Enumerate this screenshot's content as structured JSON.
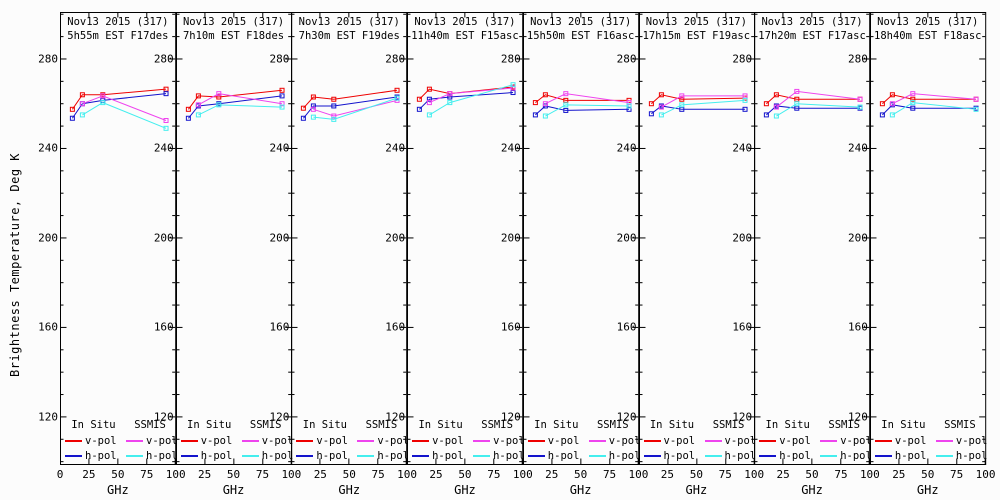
{
  "chart_data": {
    "type": "line",
    "title_repeated_per_panel": "Nov13 2015 (317)",
    "x_label": "GHz",
    "y_label": "Brightness Temperature, Deg K",
    "xlim": [
      0,
      100
    ],
    "ylim": [
      98.5,
      301
    ],
    "x_ticks": [
      0,
      25,
      50,
      75,
      100
    ],
    "y_ticks": [
      120,
      160,
      200,
      240,
      280
    ],
    "y_minor_tick_step": 10,
    "grid": "off",
    "legend_position": "bottom-inside-each-panel",
    "insitu_frequencies_ghz": [
      10.7,
      19.35,
      37,
      91.65
    ],
    "ssmis_frequencies_ghz": [
      19.35,
      37,
      91.65
    ],
    "series_meta": [
      {
        "key": "insitu_v",
        "group": "In Situ",
        "label": "v-pol",
        "color": "#ee0000",
        "freqs": "insitu"
      },
      {
        "key": "insitu_h",
        "group": "In Situ",
        "label": "h-pol",
        "color": "#1313cc",
        "freqs": "insitu"
      },
      {
        "key": "ssmis_v",
        "group": "SSMIS",
        "label": "v-pol",
        "color": "#ee44ee",
        "freqs": "ssmis"
      },
      {
        "key": "ssmis_h",
        "group": "SSMIS",
        "label": "h-pol",
        "color": "#44eeee",
        "freqs": "ssmis"
      }
    ],
    "panels": [
      {
        "title_line1": "Nov13 2015 (317)",
        "title_line2": "5h55m EST F17des",
        "series": {
          "insitu_v": [
            257.5,
            264,
            264,
            266.5
          ],
          "insitu_h": [
            253.5,
            260,
            261.5,
            264.5
          ],
          "ssmis_v": [
            260,
            263.5,
            252.5
          ],
          "ssmis_h": [
            255,
            260.5,
            249
          ]
        }
      },
      {
        "title_line1": "Nov13 2015 (317)",
        "title_line2": "7h10m EST F18des",
        "series": {
          "insitu_v": [
            257.5,
            263.5,
            263,
            266
          ],
          "insitu_h": [
            253.5,
            259,
            260,
            263.5
          ],
          "ssmis_v": [
            259.5,
            264.5,
            260
          ],
          "ssmis_h": [
            255,
            259.5,
            258.5
          ]
        }
      },
      {
        "title_line1": "Nov13 2015 (317)",
        "title_line2": "7h30m EST F19des",
        "series": {
          "insitu_v": [
            258,
            263,
            262,
            266
          ],
          "insitu_h": [
            253.5,
            259,
            259,
            263
          ],
          "ssmis_v": [
            257.5,
            254.5,
            261.5
          ],
          "ssmis_h": [
            254,
            253,
            262.5
          ]
        }
      },
      {
        "title_line1": "Nov13 2015 (317)",
        "title_line2": "11h40m EST F15asc",
        "series": {
          "insitu_v": [
            262,
            266.5,
            264.5,
            267.5
          ],
          "insitu_h": [
            257.5,
            262,
            263,
            265
          ],
          "ssmis_v": [
            260.5,
            264.5,
            267
          ],
          "ssmis_h": [
            255,
            260.5,
            268.5
          ]
        }
      },
      {
        "title_line1": "Nov13 2015 (317)",
        "title_line2": "15h50m EST F16asc",
        "series": {
          "insitu_v": [
            260.5,
            264,
            261.5,
            261.5
          ],
          "insitu_h": [
            255,
            259,
            257,
            257.5
          ],
          "ssmis_v": [
            260,
            264.5,
            260.5
          ],
          "ssmis_h": [
            254.5,
            259.5,
            259
          ]
        }
      },
      {
        "title_line1": "Nov13 2015 (317)",
        "title_line2": "17h15m EST F19asc",
        "series": {
          "insitu_v": [
            260,
            264,
            262,
            262.5
          ],
          "insitu_h": [
            255.5,
            259,
            257.5,
            257.5
          ],
          "ssmis_v": [
            258.5,
            263.5,
            263.5
          ],
          "ssmis_h": [
            255,
            259.5,
            261.5
          ]
        }
      },
      {
        "title_line1": "Nov13 2015 (317)",
        "title_line2": "17h20m EST F17asc",
        "series": {
          "insitu_v": [
            260,
            264,
            262,
            262
          ],
          "insitu_h": [
            255,
            259,
            258,
            258
          ],
          "ssmis_v": [
            258.5,
            265.5,
            262
          ],
          "ssmis_h": [
            254.5,
            260,
            258.5
          ]
        }
      },
      {
        "title_line1": "Nov13 2015 (317)",
        "title_line2": "18h40m EST F18asc",
        "series": {
          "insitu_v": [
            260,
            264,
            262,
            262
          ],
          "insitu_h": [
            255,
            259.5,
            258,
            258
          ],
          "ssmis_v": [
            260,
            264.5,
            262
          ],
          "ssmis_h": [
            255,
            260.5,
            257.5
          ]
        }
      }
    ]
  },
  "legend": {
    "insitu_header": "In Situ",
    "ssmis_header": "SSMIS",
    "vpol_label": "v-pol",
    "hpol_label": "h-pol"
  },
  "colors": {
    "insitu_vpol": "#ee0000",
    "insitu_hpol": "#1313cc",
    "ssmis_vpol": "#ee44ee",
    "ssmis_hpol": "#44eeee",
    "frame": "#000000",
    "background": "#fcfcfc"
  }
}
